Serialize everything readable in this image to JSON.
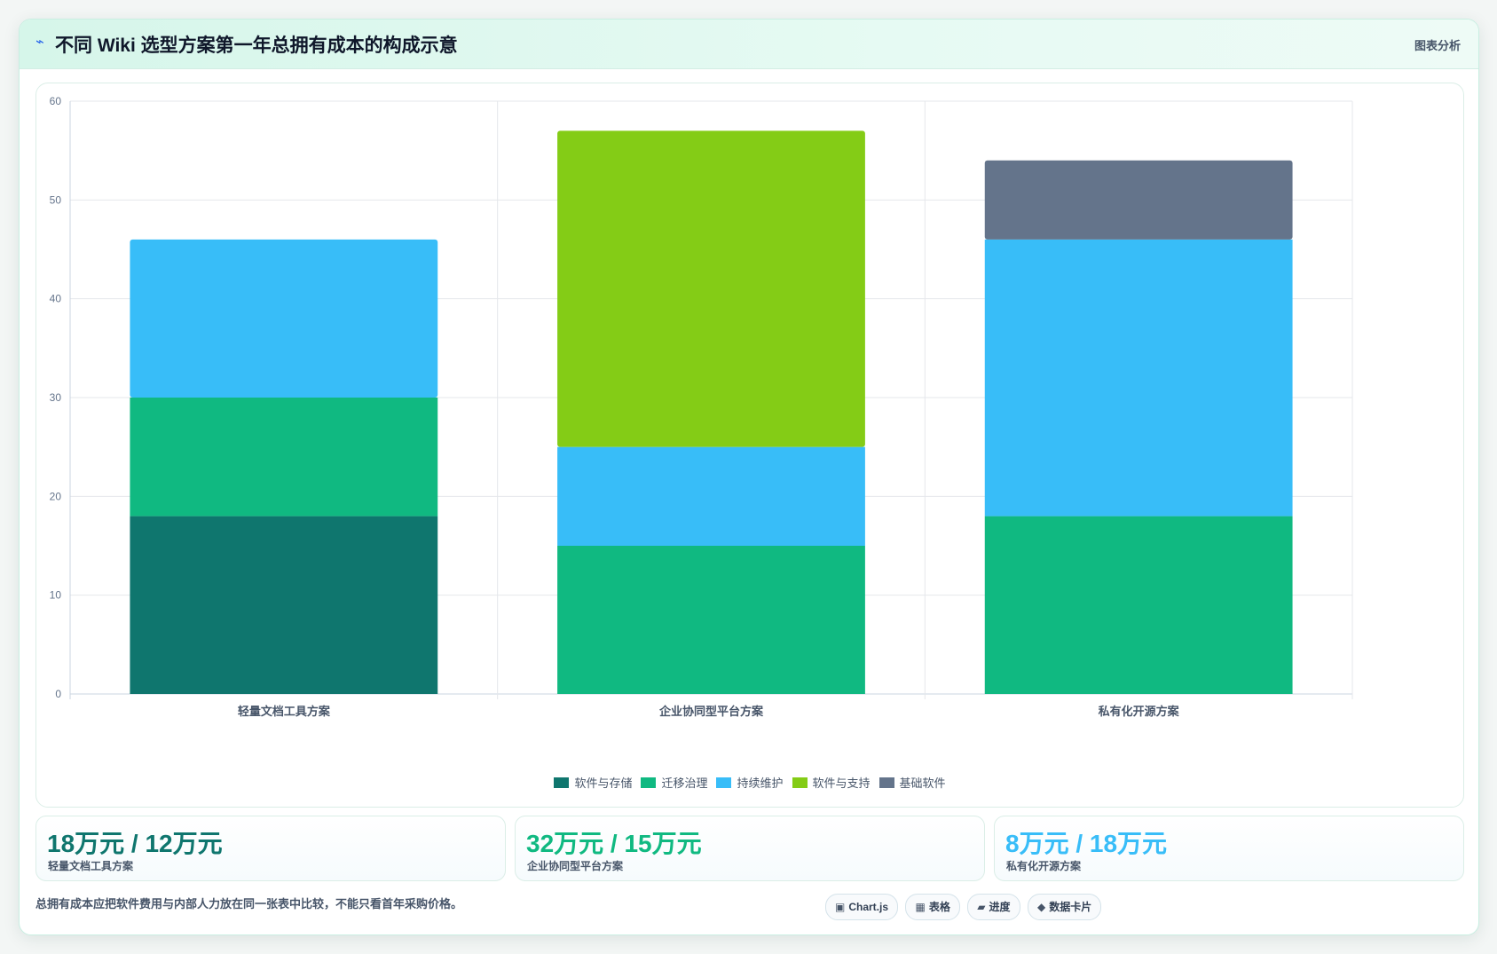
{
  "header": {
    "icon": "bolt-icon",
    "title": "不同 Wiki 选型方案第一年总拥有成本的构成示意",
    "right_label": "图表分析"
  },
  "chart_data": {
    "type": "bar",
    "stacked": true,
    "categories": [
      "轻量文档工具方案",
      "企业协同型平台方案",
      "私有化开源方案"
    ],
    "series": [
      {
        "name": "软件与存储",
        "color": "#0f766e",
        "values": [
          18,
          0,
          0
        ]
      },
      {
        "name": "迁移治理",
        "color": "#10b981",
        "values": [
          12,
          15,
          18
        ]
      },
      {
        "name": "持续维护",
        "color": "#38bdf8",
        "values": [
          16,
          10,
          28
        ]
      },
      {
        "name": "软件与支持",
        "color": "#84cc16",
        "values": [
          0,
          32,
          0
        ]
      },
      {
        "name": "基础软件",
        "color": "#64748b",
        "values": [
          0,
          0,
          8
        ]
      }
    ],
    "ylim": [
      0,
      60
    ],
    "yticks": [
      0,
      10,
      20,
      30,
      40,
      50,
      60
    ],
    "grid": true,
    "legend": "bottom",
    "title": "",
    "xlabel": "",
    "ylabel": ""
  },
  "stats": [
    {
      "value": "18万元 / 12万元",
      "label": "轻量文档工具方案",
      "color": "#0f766e"
    },
    {
      "value": "32万元 / 15万元",
      "label": "企业协同型平台方案",
      "color": "#10b981"
    },
    {
      "value": "8万元 / 18万元",
      "label": "私有化开源方案",
      "color": "#38bdf8"
    }
  ],
  "footnote": "总拥有成本应把软件费用与内部人力放在同一张表中比较，不能只看首年采购价格。",
  "chips": [
    {
      "icon": "▣",
      "label": "Chart.js"
    },
    {
      "icon": "▦",
      "label": "表格"
    },
    {
      "icon": "▰",
      "label": "进度"
    },
    {
      "icon": "◆",
      "label": "数据卡片"
    }
  ]
}
